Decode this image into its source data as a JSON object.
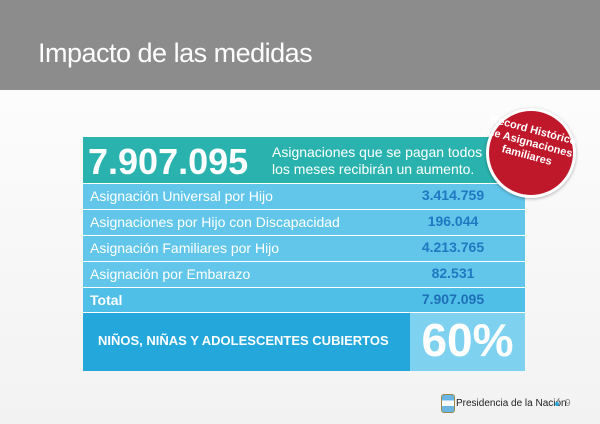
{
  "header": {
    "title": "Impacto de las medidas"
  },
  "summary": {
    "total": "7.907.095",
    "description": [
      "Asignaciones que se pagan todos",
      "los meses recibirán un aumento."
    ]
  },
  "table": {
    "rows": [
      [
        "Asignación Universal por Hijo",
        "3.414.759"
      ],
      [
        "Asignaciones por Hijo con Discapacidad",
        "196.044"
      ],
      [
        "Asignación Familiares por Hijo",
        "4.213.765"
      ],
      [
        "Asignación por Embarazo",
        "82.531"
      ]
    ],
    "total": [
      "Total",
      "7.907.095"
    ]
  },
  "coverage": {
    "label": "NIÑOS, NIÑAS Y ADOLESCENTES CUBIERTOS",
    "value": "60%"
  },
  "badge": [
    "Record Histórico",
    "de Asignaciones",
    "familiares"
  ],
  "footer": {
    "org": "Presidencia de la Nación",
    "page": "9"
  }
}
